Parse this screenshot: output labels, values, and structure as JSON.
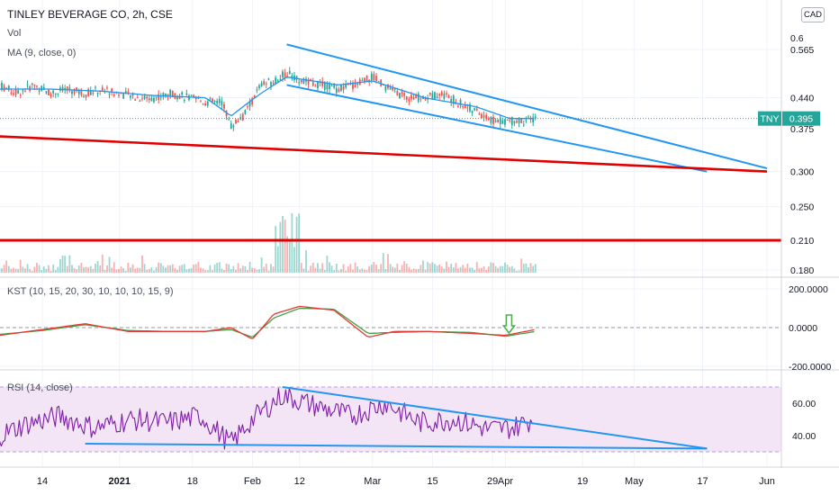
{
  "header": {
    "symbol_title": "TINLEY BEVERAGE CO, 2h, CSE",
    "vol_label": "Vol",
    "ma_label": "MA (9, close, 0)",
    "currency_button": "CAD"
  },
  "price_tag": {
    "ticker": "TNY",
    "value": "0.395",
    "color": "#26a69a"
  },
  "colors": {
    "up": "#26a69a",
    "down": "#ef5350",
    "ma": "#2196f3",
    "trendline": "#2196f3",
    "support": "#e00000",
    "kst": "#e53935",
    "kst_signal": "#43a047",
    "rsi": "#7b1fa2",
    "rsi_band": "#f3e5f5",
    "arrow": "#4caf50"
  },
  "panes": {
    "kst_label": "KST (10, 15, 20, 30, 10, 10, 10, 15, 9)",
    "rsi_label": "RSI (14, close)"
  },
  "chart_data": [
    {
      "type": "line",
      "title": "TINLEY BEVERAGE CO, 2h, CSE",
      "y_axis": {
        "ticks": [
          "0.565",
          "0.440",
          "0.375",
          "0.300",
          "0.250",
          "0.210",
          "0.180"
        ],
        "top_clipped": "0.6",
        "scale": "log"
      },
      "x_axis": {
        "ticks": [
          "14",
          "2021",
          "18",
          "Feb",
          "12",
          "Mar",
          "15",
          "29",
          "Apr",
          "19",
          "May",
          "17",
          "Jun"
        ]
      },
      "series": [
        {
          "name": "TNY",
          "x": [
            "Dec 4",
            "Dec 8",
            "Dec 12",
            "Dec 16",
            "Dec 20",
            "Dec 24",
            "Dec 28",
            "Jan 1",
            "Jan 5",
            "Jan 9",
            "Jan 13",
            "Jan 17",
            "Jan 21",
            "Jan 25",
            "Jan 27",
            "Jan 30",
            "Feb 3",
            "Feb 6",
            "Feb 9",
            "Feb 13",
            "Feb 17",
            "Feb 21",
            "Feb 25",
            "Mar 1",
            "Mar 5",
            "Mar 9",
            "Mar 13",
            "Mar 17",
            "Mar 21",
            "Mar 25",
            "Mar 29",
            "Apr 2",
            "Apr 6",
            "Apr 8"
          ],
          "values": [
            0.47,
            0.45,
            0.47,
            0.45,
            0.46,
            0.45,
            0.46,
            0.45,
            0.44,
            0.44,
            0.45,
            0.44,
            0.43,
            0.43,
            0.38,
            0.4,
            0.47,
            0.48,
            0.5,
            0.48,
            0.47,
            0.46,
            0.47,
            0.49,
            0.46,
            0.44,
            0.44,
            0.45,
            0.43,
            0.41,
            0.39,
            0.39,
            0.39,
            0.395
          ]
        },
        {
          "name": "MA (9, close, 0)",
          "x": [
            "Dec 4",
            "Dec 16",
            "Dec 28",
            "Jan 9",
            "Jan 21",
            "Jan 27",
            "Feb 3",
            "Feb 9",
            "Feb 21",
            "Mar 1",
            "Mar 13",
            "Mar 25",
            "Apr 2",
            "Apr 8"
          ],
          "values": [
            0.46,
            0.46,
            0.455,
            0.445,
            0.44,
            0.4,
            0.45,
            0.49,
            0.47,
            0.48,
            0.44,
            0.42,
            0.395,
            0.395
          ]
        }
      ],
      "trendlines": [
        {
          "name": "channel-upper",
          "from": {
            "x": "Feb 9",
            "y": 0.58
          },
          "to": {
            "x": "Jun 1",
            "y": 0.305
          }
        },
        {
          "name": "channel-lower",
          "from": {
            "x": "Feb 9",
            "y": 0.47
          },
          "to": {
            "x": "May 18",
            "y": 0.3
          }
        },
        {
          "name": "support-sloped",
          "from": {
            "x": "Dec 4",
            "y": 0.36
          },
          "to": {
            "x": "Jun 1",
            "y": 0.3
          }
        },
        {
          "name": "support-horizontal",
          "y": 0.21
        }
      ],
      "volume": {
        "max_day": "Feb 9"
      }
    },
    {
      "type": "line",
      "title": "KST (10, 15, 20, 30, 10, 10, 10, 15, 9)",
      "y_axis": {
        "ticks": [
          "200.0000",
          "0.0000",
          "-200.0000"
        ]
      },
      "series": [
        {
          "name": "KST",
          "x": [
            "Dec 4",
            "Dec 14",
            "Dec 24",
            "Jan 3",
            "Jan 13",
            "Jan 21",
            "Jan 27",
            "Feb 1",
            "Feb 6",
            "Feb 12",
            "Feb 20",
            "Feb 28",
            "Mar 6",
            "Mar 14",
            "Mar 24",
            "Apr 1",
            "Apr 8"
          ],
          "values": [
            -40,
            -10,
            20,
            -20,
            -20,
            -20,
            0,
            -60,
            70,
            110,
            90,
            -50,
            -20,
            -20,
            -30,
            -40,
            -10
          ]
        },
        {
          "name": "Signal",
          "x": [
            "Dec 4",
            "Dec 14",
            "Dec 24",
            "Jan 3",
            "Jan 13",
            "Jan 21",
            "Jan 27",
            "Feb 1",
            "Feb 6",
            "Feb 12",
            "Feb 20",
            "Feb 28",
            "Mar 6",
            "Mar 14",
            "Mar 24",
            "Apr 1",
            "Apr 8"
          ],
          "values": [
            -35,
            -15,
            15,
            -15,
            -20,
            -20,
            -10,
            -50,
            50,
            100,
            95,
            -30,
            -25,
            -20,
            -25,
            -45,
            -20
          ]
        }
      ]
    },
    {
      "type": "line",
      "title": "RSI (14, close)",
      "y_axis": {
        "ticks": [
          "60.00",
          "40.00"
        ],
        "band": [
          30,
          70
        ]
      },
      "series": [
        {
          "name": "RSI",
          "x": [
            "Dec 4",
            "Dec 10",
            "Dec 18",
            "Dec 26",
            "Jan 4",
            "Jan 12",
            "Jan 20",
            "Jan 27",
            "Feb 1",
            "Feb 8",
            "Feb 16",
            "Feb 24",
            "Mar 4",
            "Mar 12",
            "Mar 20",
            "Mar 28",
            "Apr 3",
            "Apr 8"
          ],
          "values": [
            40,
            47,
            52,
            45,
            50,
            48,
            52,
            35,
            50,
            65,
            58,
            52,
            60,
            48,
            50,
            44,
            45,
            51
          ]
        }
      ],
      "trendlines": [
        {
          "name": "rsi-upper",
          "from": {
            "x": "Feb 8",
            "y": 70
          },
          "to": {
            "x": "May 18",
            "y": 32
          }
        },
        {
          "name": "rsi-lower",
          "from": {
            "x": "Dec 24",
            "y": 35
          },
          "to": {
            "x": "May 18",
            "y": 32
          }
        }
      ]
    }
  ]
}
